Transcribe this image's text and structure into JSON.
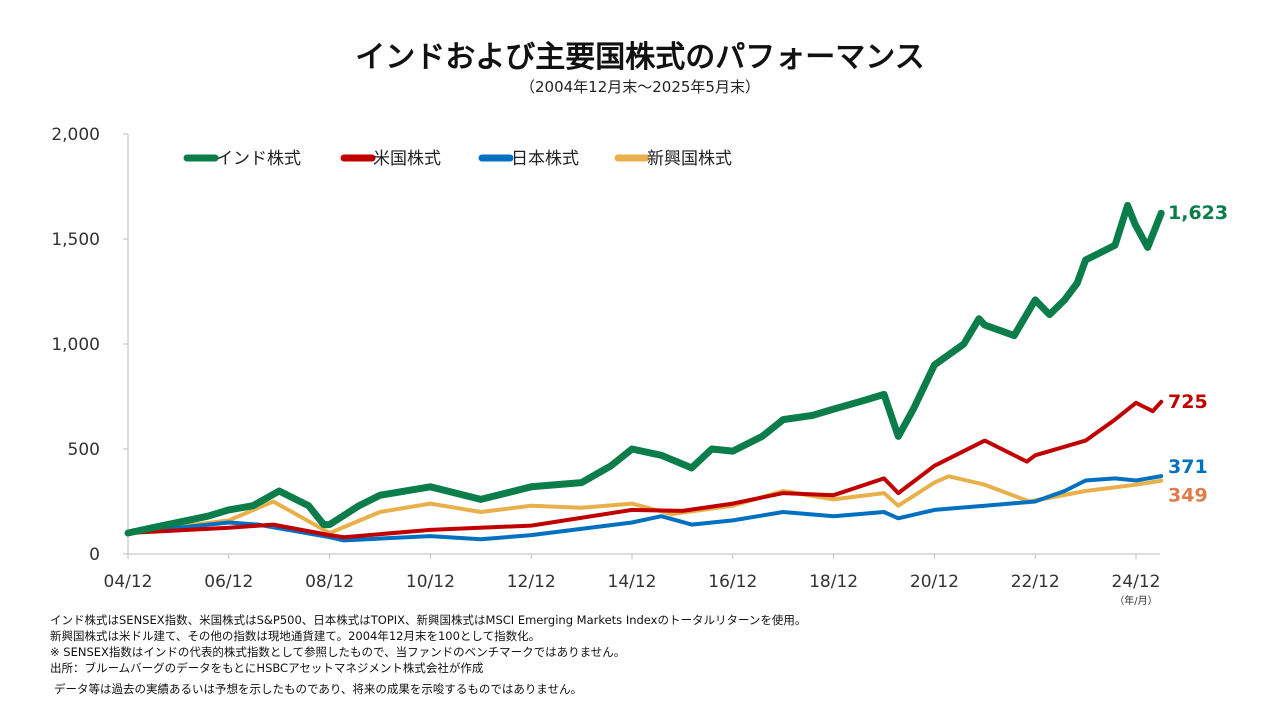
{
  "chart_data": {
    "type": "line",
    "title": "インドおよび主要国株式のパフォーマンス",
    "subtitle": "（2004年12月末～2025年5月末）",
    "xlabel": "",
    "x_unit_label": "（年/月）",
    "ylabel": "",
    "ylim": [
      0,
      2000
    ],
    "yticks": [
      0,
      500,
      1000,
      1500,
      2000
    ],
    "ytick_labels": [
      "0",
      "500",
      "1,000",
      "1,500",
      "2,000"
    ],
    "xlim": [
      2004.917,
      2025.417
    ],
    "xticks": [
      2004.917,
      2006.917,
      2008.917,
      2010.917,
      2012.917,
      2014.917,
      2016.917,
      2018.917,
      2020.917,
      2022.917,
      2024.917
    ],
    "xtick_labels": [
      "04/12",
      "06/12",
      "08/12",
      "10/12",
      "12/12",
      "14/12",
      "16/12",
      "18/12",
      "20/12",
      "22/12",
      "24/12"
    ],
    "grid": false,
    "legend_position": "top-left",
    "series": [
      {
        "name": "インド株式",
        "color": "#0a7d4a",
        "end_label": "1,623",
        "x": [
          2004.917,
          2005.5,
          2006.5,
          2006.917,
          2007.4,
          2007.917,
          2008.5,
          2008.8,
          2008.917,
          2009.5,
          2009.917,
          2010.917,
          2011.917,
          2012.917,
          2013.917,
          2014.5,
          2014.917,
          2015.5,
          2016.1,
          2016.5,
          2016.917,
          2017.5,
          2017.917,
          2018.5,
          2018.917,
          2019.5,
          2019.917,
          2020.2,
          2020.5,
          2020.917,
          2021.5,
          2021.8,
          2021.917,
          2022.5,
          2022.917,
          2023.2,
          2023.5,
          2023.75,
          2023.917,
          2024.5,
          2024.75,
          2024.9,
          2025.15,
          2025.417
        ],
        "values": [
          100,
          130,
          180,
          210,
          230,
          300,
          230,
          140,
          140,
          230,
          280,
          320,
          260,
          320,
          340,
          420,
          500,
          470,
          410,
          500,
          490,
          560,
          640,
          660,
          690,
          730,
          760,
          560,
          690,
          900,
          1000,
          1120,
          1090,
          1040,
          1210,
          1140,
          1210,
          1290,
          1400,
          1470,
          1660,
          1570,
          1460,
          1623
        ]
      },
      {
        "name": "米国株式",
        "color": "#c00000",
        "end_label": "725",
        "x": [
          2004.917,
          2006.917,
          2007.8,
          2008.917,
          2009.2,
          2010.917,
          2012.917,
          2014.917,
          2015.917,
          2016.917,
          2017.917,
          2018.917,
          2019.917,
          2020.2,
          2020.917,
          2021.917,
          2022.75,
          2022.917,
          2023.917,
          2024.5,
          2024.917,
          2025.25,
          2025.417
        ],
        "values": [
          100,
          125,
          140,
          90,
          80,
          115,
          135,
          210,
          205,
          240,
          290,
          280,
          360,
          290,
          420,
          540,
          440,
          470,
          540,
          640,
          720,
          680,
          725
        ]
      },
      {
        "name": "日本株式",
        "color": "#0070c0",
        "end_label": "371",
        "x": [
          2004.917,
          2006.917,
          2007.5,
          2008.917,
          2009.2,
          2010.917,
          2011.917,
          2012.917,
          2014.917,
          2015.5,
          2016.1,
          2016.917,
          2017.917,
          2018.917,
          2019.917,
          2020.2,
          2020.917,
          2021.917,
          2022.917,
          2023.5,
          2023.917,
          2024.5,
          2024.917,
          2025.417
        ],
        "values": [
          100,
          150,
          140,
          80,
          65,
          85,
          70,
          90,
          150,
          180,
          140,
          160,
          200,
          180,
          200,
          170,
          210,
          230,
          250,
          300,
          350,
          360,
          350,
          371
        ]
      },
      {
        "name": "新興国株式",
        "color": "#e8b04a",
        "end_label": "349",
        "end_label_color": "#e07b4a",
        "x": [
          2004.917,
          2006.917,
          2007.8,
          2008.917,
          2009.917,
          2010.917,
          2011.917,
          2012.917,
          2013.917,
          2014.917,
          2015.7,
          2016.917,
          2017.917,
          2018.917,
          2019.917,
          2020.2,
          2020.917,
          2021.2,
          2021.917,
          2022.8,
          2023.917,
          2024.917,
          2025.417
        ],
        "values": [
          100,
          160,
          250,
          100,
          200,
          240,
          200,
          230,
          220,
          240,
          190,
          230,
          300,
          260,
          290,
          230,
          340,
          370,
          330,
          250,
          300,
          330,
          349
        ]
      }
    ]
  },
  "notes": [
    "インド株式はSENSEX指数、米国株式はS&P500、日本株式はTOPIX、新興国株式はMSCI Emerging Markets Indexのトータルリターンを使用。",
    "新興国株式は米ドル建て、その他の指数は現地通貨建て。2004年12月末を100として指数化。",
    "※ SENSEX指数はインドの代表的株式指数として参照したもので、当ファンドのベンチマークではありません。",
    "出所：ブルームバーグのデータをもとにHSBCアセットマネジメント株式会社が作成",
    "データ等は過去の実績あるいは予想を示したものであり、将来の成果を示唆するものではありません。"
  ]
}
